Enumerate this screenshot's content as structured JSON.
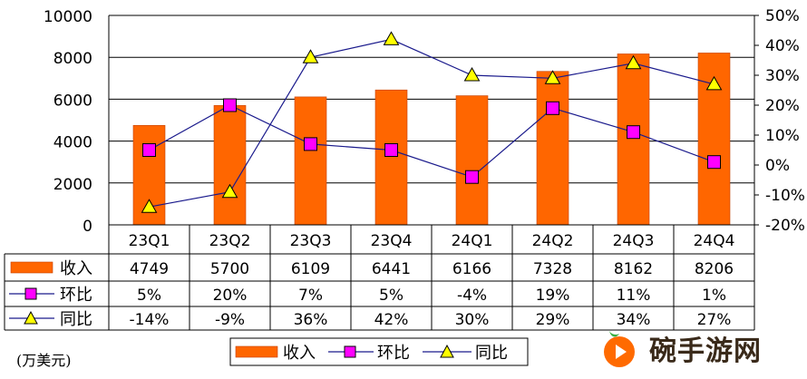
{
  "chart_data": {
    "type": "bar",
    "categories": [
      "23Q1",
      "23Q2",
      "23Q3",
      "23Q4",
      "24Q1",
      "24Q2",
      "24Q3",
      "24Q4"
    ],
    "series": [
      {
        "name": "收入",
        "type": "bar",
        "axis": "left",
        "color": "#ff6600",
        "values": [
          4749,
          5700,
          6109,
          6441,
          6166,
          7328,
          8162,
          8206
        ]
      },
      {
        "name": "环比",
        "type": "line",
        "axis": "right",
        "color": "#ff00ff",
        "marker": "square",
        "values": [
          5,
          20,
          7,
          5,
          -4,
          19,
          11,
          1
        ]
      },
      {
        "name": "同比",
        "type": "line",
        "axis": "right",
        "color": "#ffff00",
        "marker": "triangle",
        "values": [
          -14,
          -9,
          36,
          42,
          30,
          29,
          34,
          27
        ]
      }
    ],
    "table_text": {
      "收入": [
        "4749",
        "5700",
        "6109",
        "6441",
        "6166",
        "7328",
        "8162",
        "8206"
      ],
      "环比": [
        "5%",
        "20%",
        "7%",
        "5%",
        "-4%",
        "19%",
        "11%",
        "1%"
      ],
      "同比": [
        "-14%",
        "-9%",
        "36%",
        "42%",
        "30%",
        "29%",
        "34%",
        "27%"
      ]
    },
    "y_left": {
      "min": 0,
      "max": 10000,
      "ticks": [
        "0",
        "2000",
        "4000",
        "6000",
        "8000",
        "10000"
      ]
    },
    "y_right": {
      "min": -20,
      "max": 50,
      "ticks": [
        "-20%",
        "-10%",
        "0%",
        "10%",
        "20%",
        "30%",
        "40%",
        "50%"
      ]
    },
    "grid": true,
    "legend_position": "bottom",
    "unit": "(万美元)"
  },
  "watermark": {
    "text": "碗手游网",
    "icon": "play-logo-icon"
  }
}
